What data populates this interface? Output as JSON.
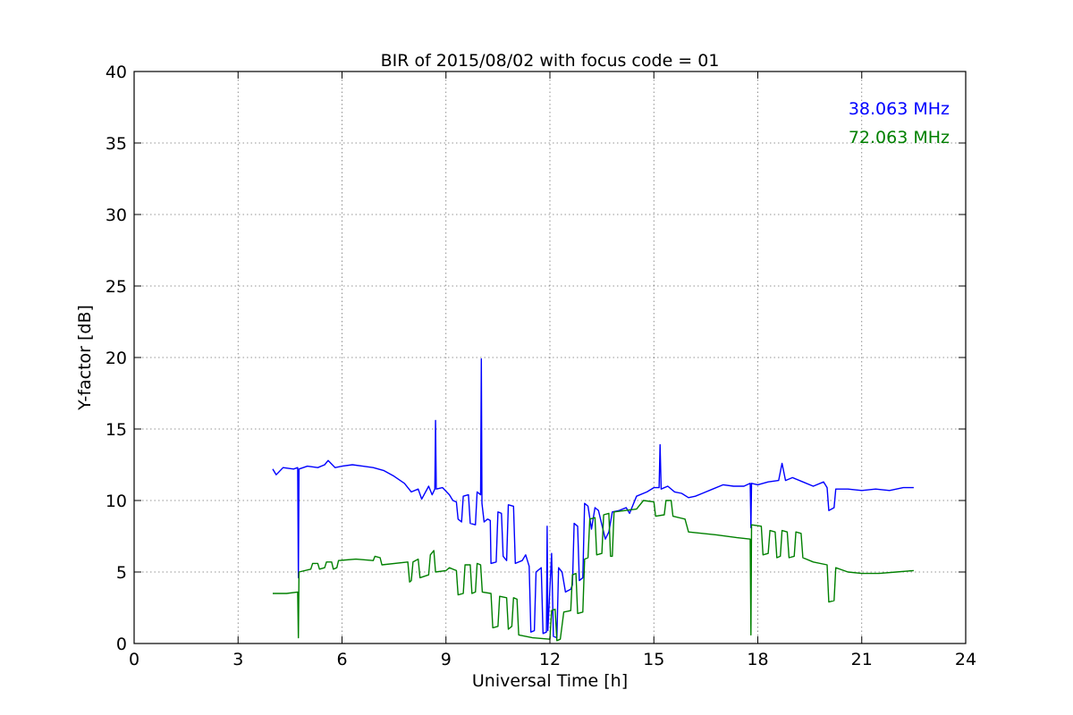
{
  "chart_data": {
    "type": "line",
    "title": "BIR of 2015/08/02 with focus code = 01",
    "xlabel": "Universal Time [h]",
    "ylabel": "Y-factor [dB]",
    "xlim": [
      0,
      24
    ],
    "ylim": [
      0,
      40
    ],
    "xticks": [
      "0",
      "3",
      "6",
      "9",
      "12",
      "15",
      "18",
      "21",
      "24"
    ],
    "yticks": [
      "0",
      "5",
      "10",
      "15",
      "20",
      "25",
      "30",
      "35",
      "40"
    ],
    "grid": true,
    "legend_placement": "top-right",
    "series": [
      {
        "name": "38.063 MHz",
        "color": "#0000ff",
        "points": [
          [
            4.0,
            12.2
          ],
          [
            4.1,
            11.8
          ],
          [
            4.3,
            12.3
          ],
          [
            4.6,
            12.2
          ],
          [
            4.72,
            12.3
          ],
          [
            4.74,
            4.6
          ],
          [
            4.76,
            12.2
          ],
          [
            5.0,
            12.4
          ],
          [
            5.3,
            12.3
          ],
          [
            5.5,
            12.5
          ],
          [
            5.6,
            12.8
          ],
          [
            5.8,
            12.3
          ],
          [
            6.0,
            12.4
          ],
          [
            6.3,
            12.5
          ],
          [
            6.6,
            12.4
          ],
          [
            6.9,
            12.3
          ],
          [
            7.2,
            12.1
          ],
          [
            7.5,
            11.7
          ],
          [
            7.8,
            11.2
          ],
          [
            8.0,
            10.6
          ],
          [
            8.2,
            10.8
          ],
          [
            8.3,
            10.1
          ],
          [
            8.5,
            11.0
          ],
          [
            8.6,
            10.4
          ],
          [
            8.68,
            10.8
          ],
          [
            8.7,
            15.6
          ],
          [
            8.72,
            10.8
          ],
          [
            8.9,
            10.9
          ],
          [
            9.1,
            10.4
          ],
          [
            9.2,
            10.0
          ],
          [
            9.3,
            9.9
          ],
          [
            9.35,
            8.7
          ],
          [
            9.45,
            8.5
          ],
          [
            9.5,
            10.3
          ],
          [
            9.65,
            10.4
          ],
          [
            9.7,
            8.4
          ],
          [
            9.85,
            8.3
          ],
          [
            9.9,
            10.6
          ],
          [
            10.0,
            10.4
          ],
          [
            10.02,
            19.9
          ],
          [
            10.04,
            9.8
          ],
          [
            10.1,
            8.5
          ],
          [
            10.2,
            8.7
          ],
          [
            10.28,
            8.6
          ],
          [
            10.3,
            5.6
          ],
          [
            10.45,
            5.7
          ],
          [
            10.5,
            9.2
          ],
          [
            10.6,
            9.1
          ],
          [
            10.65,
            6.1
          ],
          [
            10.75,
            5.8
          ],
          [
            10.8,
            9.7
          ],
          [
            10.95,
            9.6
          ],
          [
            11.0,
            5.6
          ],
          [
            11.2,
            5.8
          ],
          [
            11.3,
            6.2
          ],
          [
            11.4,
            5.4
          ],
          [
            11.45,
            0.8
          ],
          [
            11.55,
            0.9
          ],
          [
            11.6,
            5.0
          ],
          [
            11.75,
            5.3
          ],
          [
            11.8,
            0.7
          ],
          [
            11.9,
            0.8
          ],
          [
            11.92,
            8.2
          ],
          [
            11.94,
            0.9
          ],
          [
            12.05,
            6.3
          ],
          [
            12.1,
            0.5
          ],
          [
            12.2,
            0.4
          ],
          [
            12.25,
            5.3
          ],
          [
            12.35,
            5.0
          ],
          [
            12.45,
            3.6
          ],
          [
            12.6,
            3.8
          ],
          [
            12.65,
            4.1
          ],
          [
            12.7,
            8.4
          ],
          [
            12.8,
            8.2
          ],
          [
            12.85,
            4.4
          ],
          [
            12.95,
            4.6
          ],
          [
            13.0,
            9.8
          ],
          [
            13.1,
            9.6
          ],
          [
            13.2,
            8.0
          ],
          [
            13.3,
            9.5
          ],
          [
            13.4,
            9.3
          ],
          [
            13.5,
            8.3
          ],
          [
            13.6,
            7.3
          ],
          [
            13.7,
            7.8
          ],
          [
            13.8,
            9.2
          ],
          [
            14.0,
            9.3
          ],
          [
            14.2,
            9.5
          ],
          [
            14.3,
            9.1
          ],
          [
            14.5,
            10.3
          ],
          [
            14.8,
            10.6
          ],
          [
            15.0,
            10.9
          ],
          [
            15.15,
            10.9
          ],
          [
            15.18,
            13.9
          ],
          [
            15.21,
            10.8
          ],
          [
            15.4,
            11.0
          ],
          [
            15.6,
            10.6
          ],
          [
            15.8,
            10.5
          ],
          [
            16.0,
            10.2
          ],
          [
            16.2,
            10.3
          ],
          [
            16.4,
            10.5
          ],
          [
            16.7,
            10.8
          ],
          [
            17.0,
            11.1
          ],
          [
            17.3,
            11.0
          ],
          [
            17.6,
            11.0
          ],
          [
            17.78,
            11.2
          ],
          [
            17.8,
            8.1
          ],
          [
            17.82,
            11.2
          ],
          [
            18.0,
            11.1
          ],
          [
            18.3,
            11.3
          ],
          [
            18.6,
            11.4
          ],
          [
            18.7,
            12.6
          ],
          [
            18.8,
            11.4
          ],
          [
            19.0,
            11.6
          ],
          [
            19.3,
            11.3
          ],
          [
            19.6,
            11.0
          ],
          [
            19.9,
            11.3
          ],
          [
            20.0,
            10.9
          ],
          [
            20.05,
            9.3
          ],
          [
            20.2,
            9.5
          ],
          [
            20.25,
            10.8
          ],
          [
            20.6,
            10.8
          ],
          [
            21.0,
            10.7
          ],
          [
            21.4,
            10.8
          ],
          [
            21.8,
            10.7
          ],
          [
            22.2,
            10.9
          ],
          [
            22.5,
            10.9
          ]
        ]
      },
      {
        "name": "72.063 MHz",
        "color": "#008000",
        "points": [
          [
            4.0,
            3.5
          ],
          [
            4.4,
            3.5
          ],
          [
            4.72,
            3.6
          ],
          [
            4.74,
            0.4
          ],
          [
            4.76,
            5.0
          ],
          [
            5.1,
            5.2
          ],
          [
            5.15,
            5.6
          ],
          [
            5.3,
            5.6
          ],
          [
            5.35,
            5.2
          ],
          [
            5.5,
            5.3
          ],
          [
            5.55,
            5.7
          ],
          [
            5.7,
            5.7
          ],
          [
            5.75,
            5.2
          ],
          [
            5.85,
            5.3
          ],
          [
            5.9,
            5.8
          ],
          [
            6.4,
            5.9
          ],
          [
            6.9,
            5.8
          ],
          [
            6.95,
            6.1
          ],
          [
            7.1,
            6.0
          ],
          [
            7.15,
            5.5
          ],
          [
            7.9,
            5.7
          ],
          [
            7.95,
            4.3
          ],
          [
            8.0,
            4.4
          ],
          [
            8.05,
            5.7
          ],
          [
            8.2,
            5.9
          ],
          [
            8.25,
            4.6
          ],
          [
            8.5,
            4.8
          ],
          [
            8.55,
            6.2
          ],
          [
            8.65,
            6.5
          ],
          [
            8.7,
            5.0
          ],
          [
            9.0,
            5.1
          ],
          [
            9.1,
            5.3
          ],
          [
            9.3,
            5.1
          ],
          [
            9.35,
            3.4
          ],
          [
            9.5,
            3.5
          ],
          [
            9.55,
            5.5
          ],
          [
            9.7,
            5.5
          ],
          [
            9.75,
            3.5
          ],
          [
            9.85,
            3.6
          ],
          [
            9.9,
            5.6
          ],
          [
            10.0,
            5.5
          ],
          [
            10.05,
            3.6
          ],
          [
            10.3,
            3.5
          ],
          [
            10.35,
            1.1
          ],
          [
            10.5,
            1.2
          ],
          [
            10.55,
            3.3
          ],
          [
            10.75,
            3.2
          ],
          [
            10.8,
            1.0
          ],
          [
            10.9,
            1.2
          ],
          [
            10.95,
            3.2
          ],
          [
            11.05,
            3.1
          ],
          [
            11.1,
            0.6
          ],
          [
            11.5,
            0.4
          ],
          [
            12.0,
            0.3
          ],
          [
            12.05,
            2.3
          ],
          [
            12.15,
            2.4
          ],
          [
            12.2,
            0.2
          ],
          [
            12.3,
            0.3
          ],
          [
            12.4,
            2.2
          ],
          [
            12.6,
            2.3
          ],
          [
            12.65,
            4.8
          ],
          [
            12.75,
            4.9
          ],
          [
            12.8,
            2.1
          ],
          [
            12.95,
            2.2
          ],
          [
            13.0,
            5.9
          ],
          [
            13.1,
            6.0
          ],
          [
            13.15,
            8.7
          ],
          [
            13.3,
            8.8
          ],
          [
            13.35,
            6.2
          ],
          [
            13.5,
            6.3
          ],
          [
            13.55,
            9.0
          ],
          [
            13.7,
            9.1
          ],
          [
            13.75,
            6.1
          ],
          [
            13.8,
            6.1
          ],
          [
            13.85,
            9.2
          ],
          [
            14.5,
            9.4
          ],
          [
            14.7,
            10.0
          ],
          [
            15.0,
            9.9
          ],
          [
            15.05,
            8.9
          ],
          [
            15.3,
            9.0
          ],
          [
            15.35,
            10.0
          ],
          [
            15.5,
            10.0
          ],
          [
            15.55,
            8.9
          ],
          [
            15.9,
            8.7
          ],
          [
            16.0,
            7.8
          ],
          [
            16.8,
            7.6
          ],
          [
            17.4,
            7.4
          ],
          [
            17.78,
            7.3
          ],
          [
            17.8,
            0.6
          ],
          [
            17.82,
            8.3
          ],
          [
            18.1,
            8.2
          ],
          [
            18.15,
            6.2
          ],
          [
            18.3,
            6.3
          ],
          [
            18.35,
            7.9
          ],
          [
            18.5,
            7.8
          ],
          [
            18.55,
            6.0
          ],
          [
            18.65,
            6.1
          ],
          [
            18.7,
            7.9
          ],
          [
            18.85,
            7.8
          ],
          [
            18.9,
            6.0
          ],
          [
            19.05,
            6.1
          ],
          [
            19.1,
            7.8
          ],
          [
            19.25,
            7.7
          ],
          [
            19.3,
            6.0
          ],
          [
            19.6,
            5.7
          ],
          [
            20.0,
            5.5
          ],
          [
            20.05,
            2.9
          ],
          [
            20.2,
            3.0
          ],
          [
            20.25,
            5.3
          ],
          [
            20.6,
            5.0
          ],
          [
            21.0,
            4.9
          ],
          [
            21.5,
            4.9
          ],
          [
            22.0,
            5.0
          ],
          [
            22.5,
            5.1
          ]
        ]
      }
    ]
  }
}
